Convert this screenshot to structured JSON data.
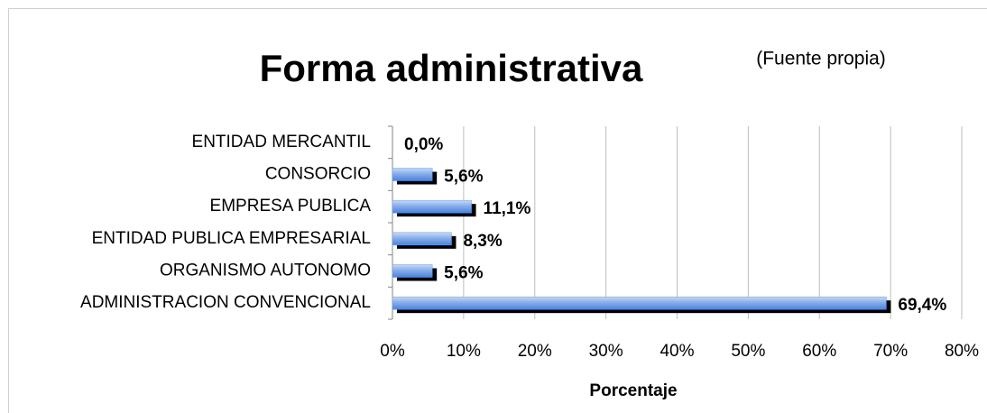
{
  "chart_data": {
    "type": "bar",
    "orientation": "horizontal",
    "title": "Forma administrativa",
    "annotation": "(Fuente propia)",
    "x_label": "Porcentaje",
    "categories": [
      "ENTIDAD MERCANTIL",
      "CONSORCIO",
      "EMPRESA PUBLICA",
      "ENTIDAD PUBLICA EMPRESARIAL",
      "ORGANISMO AUTONOMO",
      "ADMINISTRACION CONVENCIONAL"
    ],
    "values": [
      0.0,
      5.6,
      11.1,
      8.3,
      5.6,
      69.4
    ],
    "value_labels": [
      "0,0%",
      "5,6%",
      "11,1%",
      "8,3%",
      "5,6%",
      "69,4%"
    ],
    "color": "#6b9be6",
    "xlim": [
      0,
      80
    ],
    "xticks": [
      {
        "value": 0,
        "label": "0%"
      },
      {
        "value": 10,
        "label": "10%"
      },
      {
        "value": 20,
        "label": "20%"
      },
      {
        "value": 30,
        "label": "30%"
      },
      {
        "value": 40,
        "label": "40%"
      },
      {
        "value": 50,
        "label": "50%"
      },
      {
        "value": 60,
        "label": "60%"
      },
      {
        "value": 70,
        "label": "70%"
      },
      {
        "value": 80,
        "label": "80%"
      }
    ],
    "grid": true
  }
}
